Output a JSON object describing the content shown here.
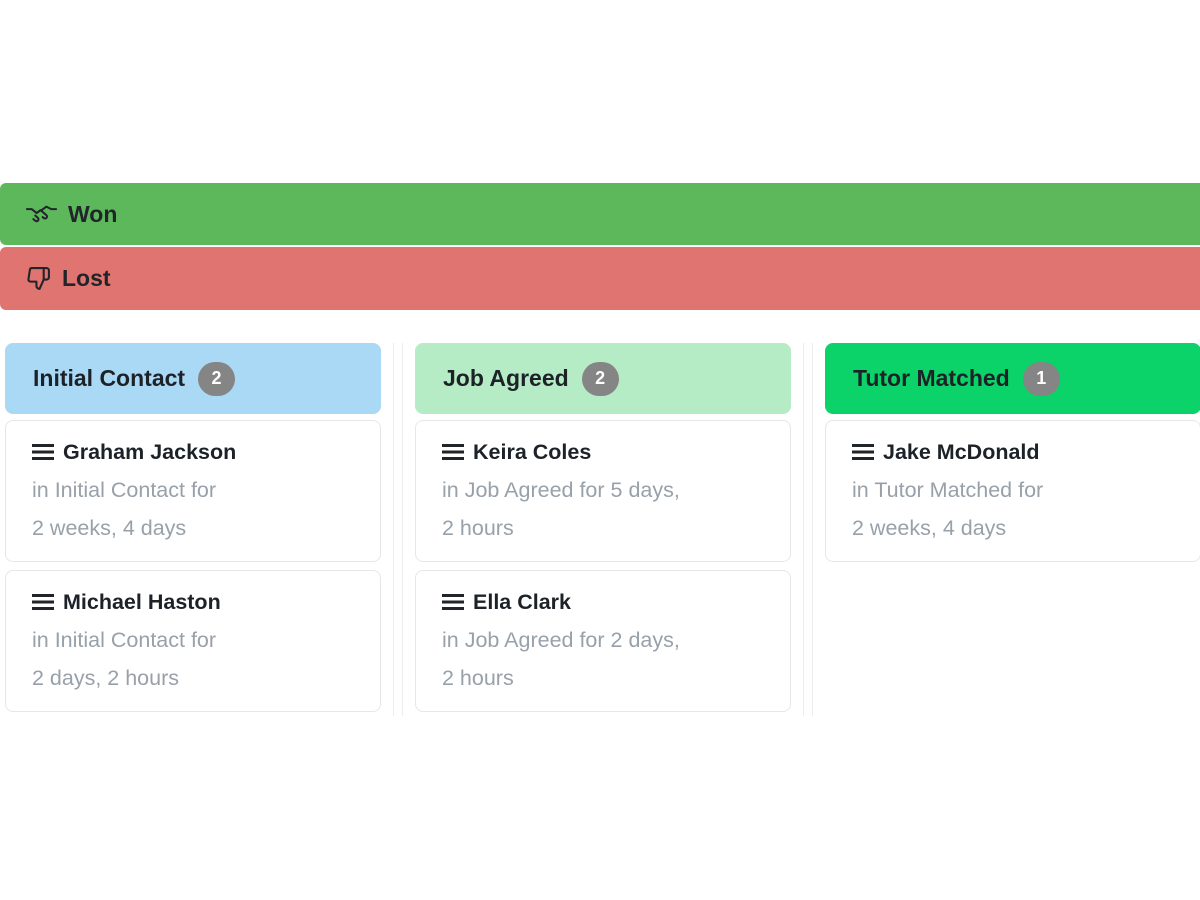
{
  "bars": {
    "won": {
      "label": "Won",
      "icon": "handshake-icon",
      "bg": "#5db85c"
    },
    "lost": {
      "label": "Lost",
      "icon": "thumbs-down-icon",
      "bg": "#e07470"
    }
  },
  "board": {
    "columns": [
      {
        "title": "Initial Contact",
        "count": "2",
        "header_bg": "#aad9f5",
        "cards": [
          {
            "name": "Graham Jackson",
            "status_lines": [
              "in Initial Contact for",
              "2 weeks, 4 days"
            ]
          },
          {
            "name": "Michael Haston",
            "status_lines": [
              "in Initial Contact for",
              "2 days, 2 hours"
            ]
          }
        ]
      },
      {
        "title": "Job Agreed",
        "count": "2",
        "header_bg": "#b6ecc5",
        "cards": [
          {
            "name": "Keira Coles",
            "status_lines": [
              "in Job Agreed for 5 days,",
              "2 hours"
            ]
          },
          {
            "name": "Ella Clark",
            "status_lines": [
              "in Job Agreed for 2 days,",
              "2 hours"
            ]
          }
        ]
      },
      {
        "title": "Tutor Matched",
        "count": "1",
        "header_bg": "#0bd269",
        "cards": [
          {
            "name": "Jake McDonald",
            "status_lines": [
              "in Tutor Matched for",
              "2 weeks, 4 days"
            ]
          }
        ]
      }
    ]
  },
  "colors": {
    "won_bg": "#5db85c",
    "lost_bg": "#e07470",
    "badge_bg": "#858585",
    "card_border": "#e7e7e7",
    "column_border": "#ededed",
    "muted_text": "#98a1a9",
    "dark_text": "#212529"
  }
}
